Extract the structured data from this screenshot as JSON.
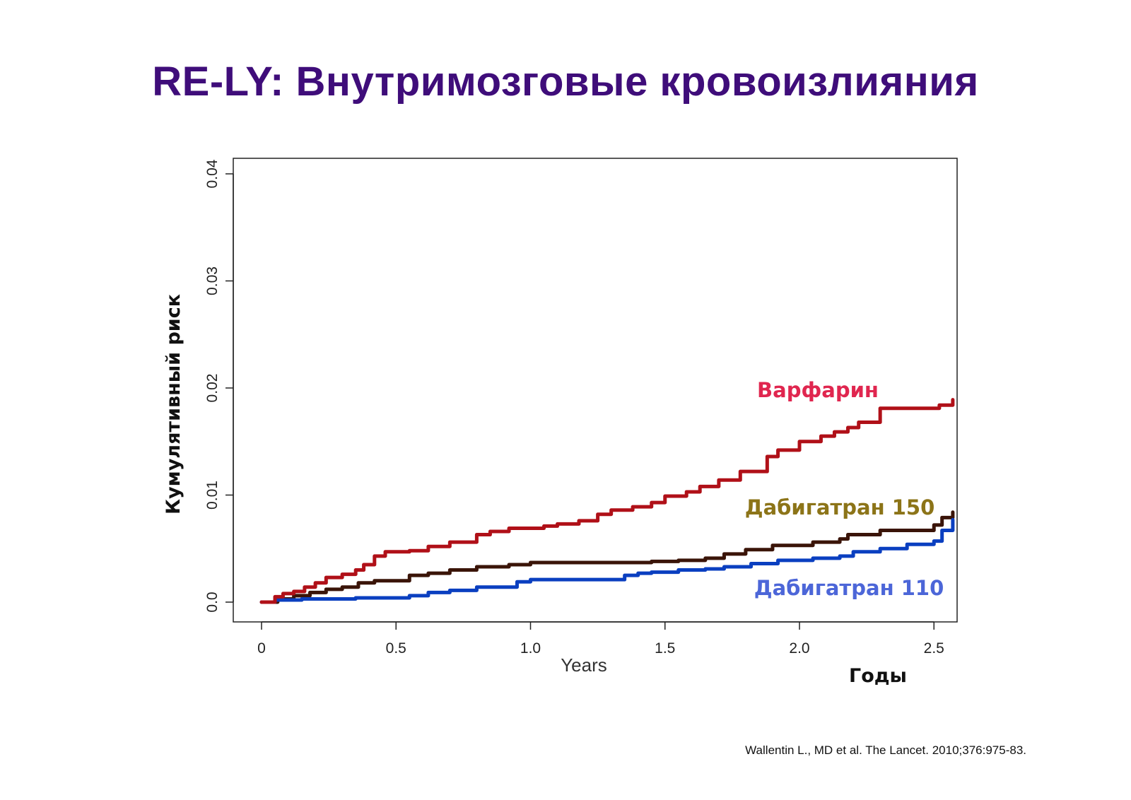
{
  "slide": {
    "title": "RE-LY: Внутримозговые кровоизлияния",
    "citation": "Wallentin L., MD et al. The Lancet. 2010;376:975-83."
  },
  "colors": {
    "title": "#3f0d7a",
    "warfarin": "#b01018",
    "warfarin_label": "#e0264f",
    "dabigatran150": "#3a1408",
    "dabigatran150_label": "#8c7418",
    "dabigatran110": "#0a3fc0",
    "dabigatran110_label": "#4c66d8"
  },
  "chart_data": {
    "type": "line",
    "step": true,
    "title": "",
    "xlabel": "Years",
    "xlabel_alt": "Годы",
    "ylabel": "Кумулятивный риск",
    "xlim": [
      0,
      2.6
    ],
    "ylim": [
      0,
      0.04
    ],
    "x_ticks": [
      0,
      0.5,
      1.0,
      1.5,
      2.0,
      2.5
    ],
    "x_tick_labels": [
      "0",
      "0.5",
      "1.0",
      "1.5",
      "2.0",
      "2.5"
    ],
    "y_ticks": [
      0,
      0.01,
      0.02,
      0.03,
      0.04
    ],
    "y_tick_labels": [
      "0.0",
      "0.01",
      "0.02",
      "0.03",
      "0.04"
    ],
    "grid": false,
    "series": [
      {
        "name": "Варфарин",
        "color_key": "warfarin",
        "label_color_key": "warfarin_label",
        "x": [
          0,
          0.05,
          0.08,
          0.12,
          0.16,
          0.2,
          0.24,
          0.3,
          0.35,
          0.38,
          0.42,
          0.46,
          0.55,
          0.62,
          0.7,
          0.8,
          0.85,
          0.92,
          1.05,
          1.1,
          1.18,
          1.25,
          1.3,
          1.38,
          1.45,
          1.5,
          1.58,
          1.63,
          1.7,
          1.78,
          1.88,
          1.92,
          2.0,
          2.08,
          2.13,
          2.18,
          2.22,
          2.3,
          2.52,
          2.57
        ],
        "y": [
          0,
          0.0005,
          0.0008,
          0.001,
          0.0014,
          0.0018,
          0.0023,
          0.0026,
          0.003,
          0.0035,
          0.0043,
          0.0047,
          0.0048,
          0.0052,
          0.0056,
          0.0063,
          0.0066,
          0.0069,
          0.0071,
          0.0073,
          0.0076,
          0.0082,
          0.0086,
          0.0089,
          0.0093,
          0.0099,
          0.0103,
          0.0108,
          0.0114,
          0.0122,
          0.0136,
          0.0142,
          0.015,
          0.0155,
          0.0159,
          0.0163,
          0.0168,
          0.0181,
          0.0184,
          0.0189
        ]
      },
      {
        "name": "Дабигатран 150",
        "color_key": "dabigatran150",
        "label_color_key": "dabigatran150_label",
        "x": [
          0,
          0.06,
          0.12,
          0.18,
          0.24,
          0.3,
          0.36,
          0.42,
          0.55,
          0.62,
          0.7,
          0.8,
          0.92,
          1.0,
          1.15,
          1.3,
          1.45,
          1.55,
          1.65,
          1.72,
          1.8,
          1.9,
          2.05,
          2.15,
          2.18,
          2.3,
          2.5,
          2.53,
          2.57
        ],
        "y": [
          0,
          0.0003,
          0.0006,
          0.0009,
          0.0012,
          0.0014,
          0.0018,
          0.002,
          0.0025,
          0.0027,
          0.003,
          0.0033,
          0.0035,
          0.0037,
          0.0037,
          0.0037,
          0.0038,
          0.0039,
          0.0041,
          0.0045,
          0.0049,
          0.0053,
          0.0056,
          0.0059,
          0.0063,
          0.0067,
          0.0072,
          0.0079,
          0.0084
        ]
      },
      {
        "name": "Дабигатран 110",
        "color_key": "dabigatran110",
        "label_color_key": "dabigatran110_label",
        "x": [
          0,
          0.05,
          0.15,
          0.35,
          0.55,
          0.62,
          0.7,
          0.8,
          0.95,
          1.0,
          1.15,
          1.3,
          1.35,
          1.4,
          1.45,
          1.55,
          1.65,
          1.72,
          1.82,
          1.92,
          2.05,
          2.15,
          2.2,
          2.3,
          2.4,
          2.5,
          2.53,
          2.57
        ],
        "y": [
          0,
          0.0002,
          0.0003,
          0.0004,
          0.0006,
          0.0009,
          0.0011,
          0.0014,
          0.0019,
          0.0021,
          0.0021,
          0.0021,
          0.0025,
          0.0027,
          0.0028,
          0.003,
          0.0031,
          0.0033,
          0.0036,
          0.0039,
          0.0041,
          0.0043,
          0.0047,
          0.005,
          0.0054,
          0.0057,
          0.0067,
          0.0077
        ]
      }
    ]
  }
}
